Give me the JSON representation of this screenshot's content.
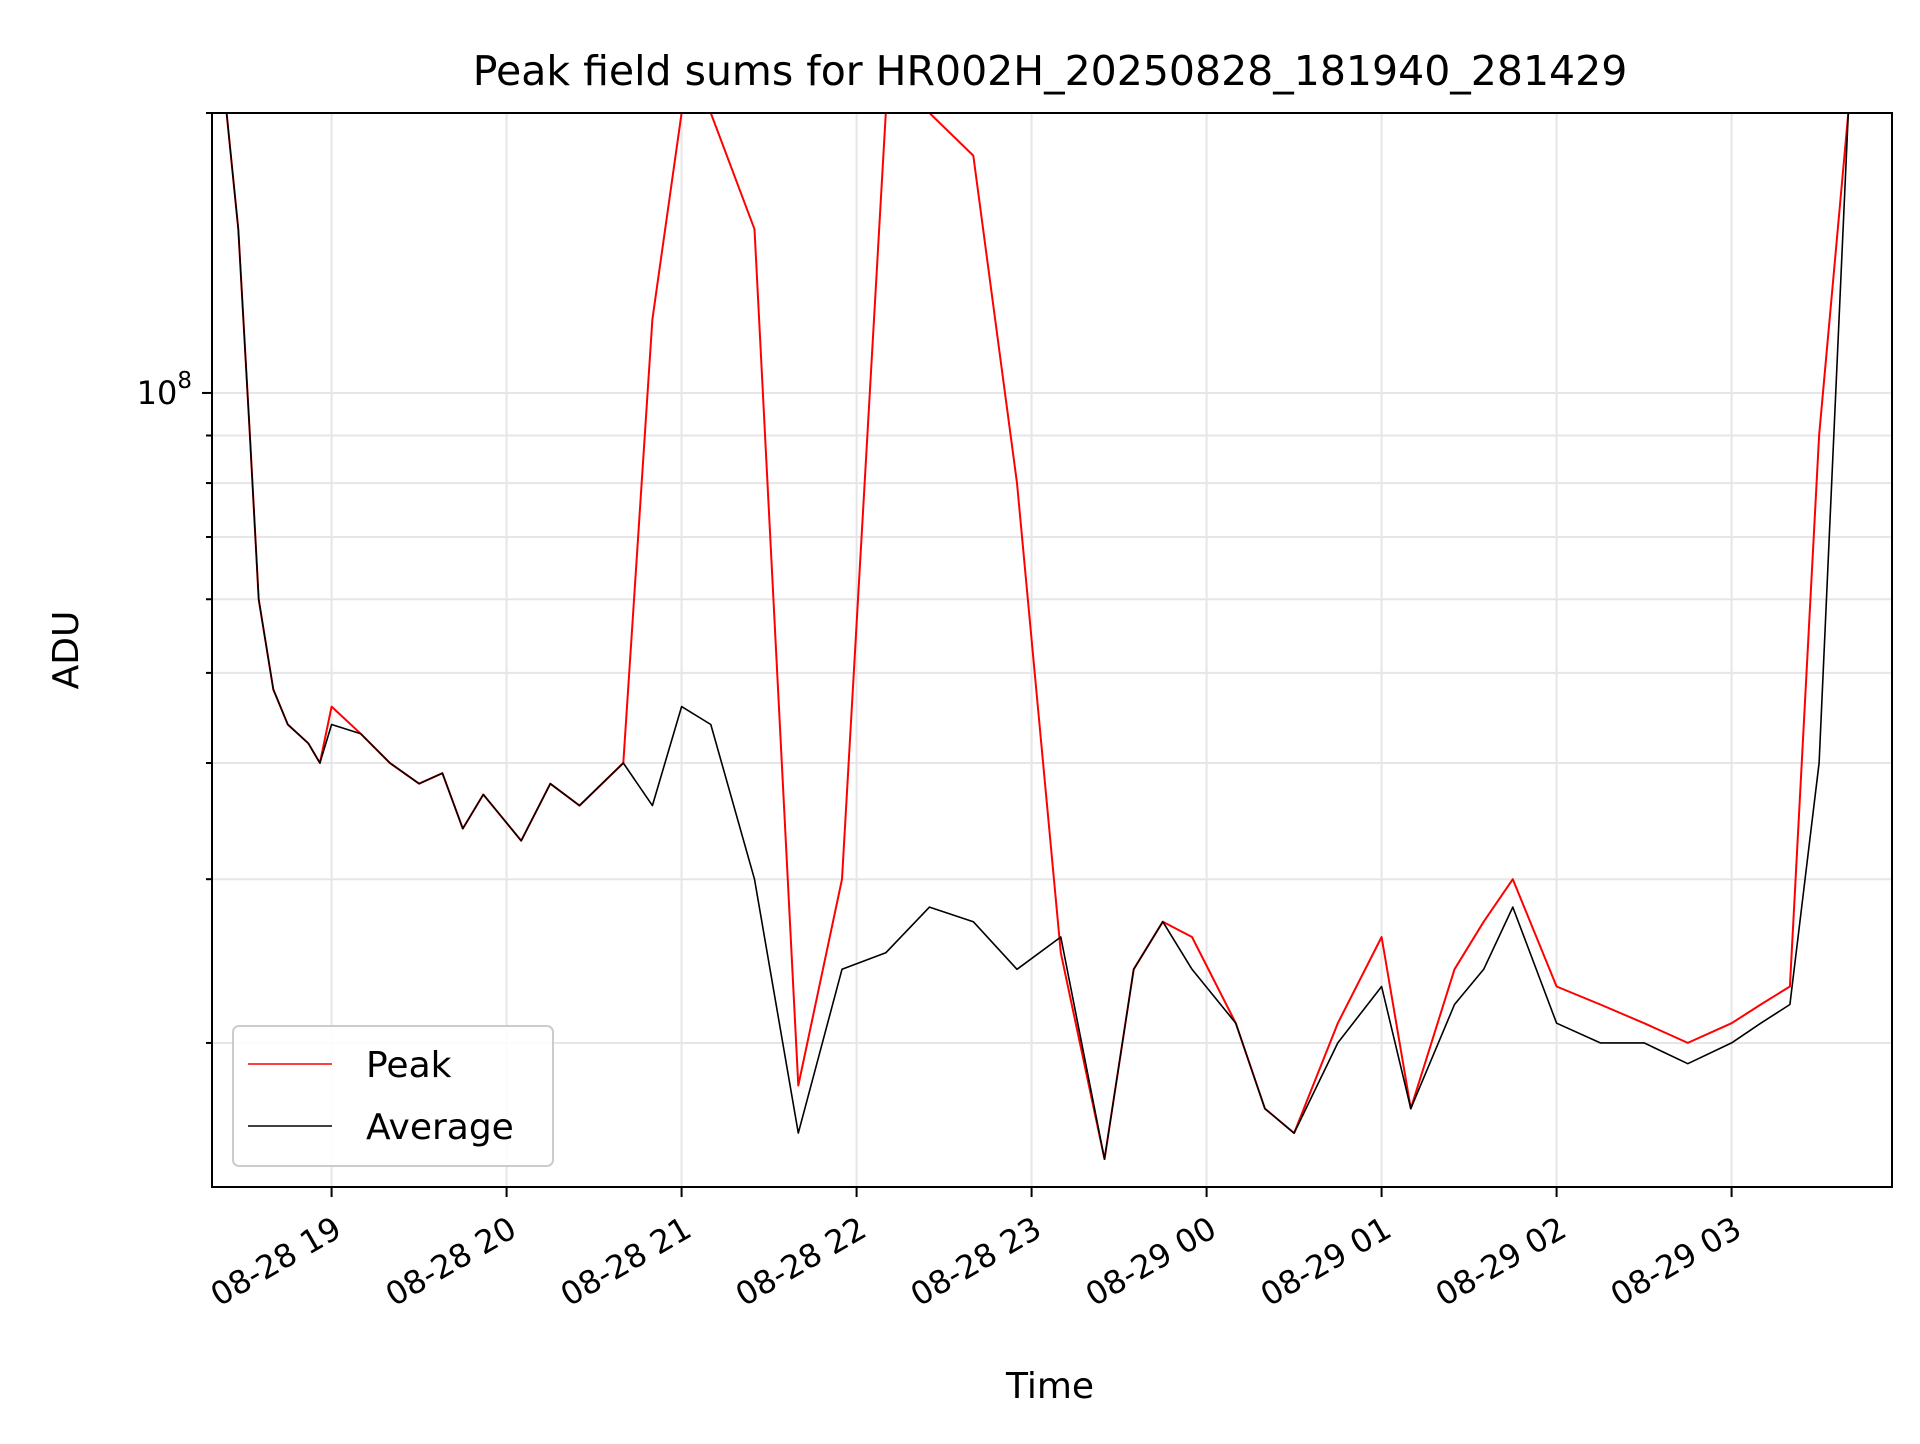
{
  "chart_data": {
    "type": "line",
    "title": "Peak field sums for HR002H_20250828_181940_281429",
    "xlabel": "Time",
    "ylabel": "ADU",
    "x_range": [
      "2025-08-28 18:19",
      "2025-08-29 03:55"
    ],
    "x_ticks": [
      "08-28 19",
      "08-28 20",
      "08-28 21",
      "08-28 22",
      "08-28 23",
      "08-29 00",
      "08-29 01",
      "08-29 02",
      "08-29 03"
    ],
    "y_scale": "log",
    "ylim": [
      14000000,
      200000000
    ],
    "y_tick_labels": [
      {
        "value": 100000000,
        "mantissa": "10",
        "exponent": "8"
      }
    ],
    "grid": true,
    "legend_position": "lower-left",
    "series": [
      {
        "name": "Peak",
        "color": "#ff0000",
        "x": [
          "2025-08-28 18:19",
          "2025-08-28 18:24",
          "2025-08-28 18:28",
          "2025-08-28 18:32",
          "2025-08-28 18:35",
          "2025-08-28 18:40",
          "2025-08-28 18:45",
          "2025-08-28 18:52",
          "2025-08-28 18:56",
          "2025-08-28 19:00",
          "2025-08-28 19:10",
          "2025-08-28 19:20",
          "2025-08-28 19:30",
          "2025-08-28 19:38",
          "2025-08-28 19:45",
          "2025-08-28 19:52",
          "2025-08-28 20:05",
          "2025-08-28 20:15",
          "2025-08-28 20:25",
          "2025-08-28 20:40",
          "2025-08-28 20:50",
          "2025-08-28 21:00",
          "2025-08-28 21:10",
          "2025-08-28 21:25",
          "2025-08-28 21:40",
          "2025-08-28 21:55",
          "2025-08-28 22:10",
          "2025-08-28 22:25",
          "2025-08-28 22:40",
          "2025-08-28 22:55",
          "2025-08-28 23:10",
          "2025-08-28 23:25",
          "2025-08-28 23:35",
          "2025-08-28 23:45",
          "2025-08-28 23:55",
          "2025-08-29 00:10",
          "2025-08-29 00:20",
          "2025-08-29 00:30",
          "2025-08-29 00:45",
          "2025-08-29 01:00",
          "2025-08-29 01:10",
          "2025-08-29 01:25",
          "2025-08-29 01:35",
          "2025-08-29 01:45",
          "2025-08-29 02:00",
          "2025-08-29 02:15",
          "2025-08-29 02:30",
          "2025-08-29 02:45",
          "2025-08-29 03:00",
          "2025-08-29 03:10",
          "2025-08-29 03:20",
          "2025-08-29 03:30",
          "2025-08-29 03:40",
          "2025-08-29 03:55"
        ],
        "y": [
          200000000,
          200000000,
          150000000,
          90000000,
          60000000,
          48000000,
          44000000,
          42000000,
          40000000,
          46000000,
          43000000,
          40000000,
          38000000,
          39000000,
          34000000,
          37000000,
          33000000,
          38000000,
          36000000,
          40000000,
          120000000,
          200000000,
          200000000,
          150000000,
          18000000,
          30000000,
          200000000,
          200000000,
          180000000,
          80000000,
          25000000,
          15000000,
          24000000,
          27000000,
          26000000,
          21000000,
          17000000,
          16000000,
          21000000,
          26000000,
          17000000,
          24000000,
          27000000,
          30000000,
          23000000,
          22000000,
          21000000,
          20000000,
          21000000,
          22000000,
          23000000,
          90000000,
          200000000,
          200000000
        ]
      },
      {
        "name": "Average",
        "color": "#000000",
        "x": [
          "2025-08-28 18:19",
          "2025-08-28 18:24",
          "2025-08-28 18:28",
          "2025-08-28 18:32",
          "2025-08-28 18:35",
          "2025-08-28 18:40",
          "2025-08-28 18:45",
          "2025-08-28 18:52",
          "2025-08-28 18:56",
          "2025-08-28 19:00",
          "2025-08-28 19:10",
          "2025-08-28 19:20",
          "2025-08-28 19:30",
          "2025-08-28 19:38",
          "2025-08-28 19:45",
          "2025-08-28 19:52",
          "2025-08-28 20:05",
          "2025-08-28 20:15",
          "2025-08-28 20:25",
          "2025-08-28 20:40",
          "2025-08-28 20:50",
          "2025-08-28 21:00",
          "2025-08-28 21:10",
          "2025-08-28 21:25",
          "2025-08-28 21:40",
          "2025-08-28 21:55",
          "2025-08-28 22:10",
          "2025-08-28 22:25",
          "2025-08-28 22:40",
          "2025-08-28 22:55",
          "2025-08-28 23:10",
          "2025-08-28 23:25",
          "2025-08-28 23:35",
          "2025-08-28 23:45",
          "2025-08-28 23:55",
          "2025-08-29 00:10",
          "2025-08-29 00:20",
          "2025-08-29 00:30",
          "2025-08-29 00:45",
          "2025-08-29 01:00",
          "2025-08-29 01:10",
          "2025-08-29 01:25",
          "2025-08-29 01:35",
          "2025-08-29 01:45",
          "2025-08-29 02:00",
          "2025-08-29 02:15",
          "2025-08-29 02:30",
          "2025-08-29 02:45",
          "2025-08-29 03:00",
          "2025-08-29 03:10",
          "2025-08-29 03:20",
          "2025-08-29 03:30",
          "2025-08-29 03:40",
          "2025-08-29 03:55"
        ],
        "y": [
          200000000,
          200000000,
          150000000,
          90000000,
          60000000,
          48000000,
          44000000,
          42000000,
          40000000,
          44000000,
          43000000,
          40000000,
          38000000,
          39000000,
          34000000,
          37000000,
          33000000,
          38000000,
          36000000,
          40000000,
          36000000,
          46000000,
          44000000,
          30000000,
          16000000,
          24000000,
          25000000,
          28000000,
          27000000,
          24000000,
          26000000,
          15000000,
          24000000,
          27000000,
          24000000,
          21000000,
          17000000,
          16000000,
          20000000,
          23000000,
          17000000,
          22000000,
          24000000,
          28000000,
          21000000,
          20000000,
          20000000,
          19000000,
          20000000,
          21000000,
          22000000,
          40000000,
          200000000,
          200000000
        ]
      }
    ]
  }
}
